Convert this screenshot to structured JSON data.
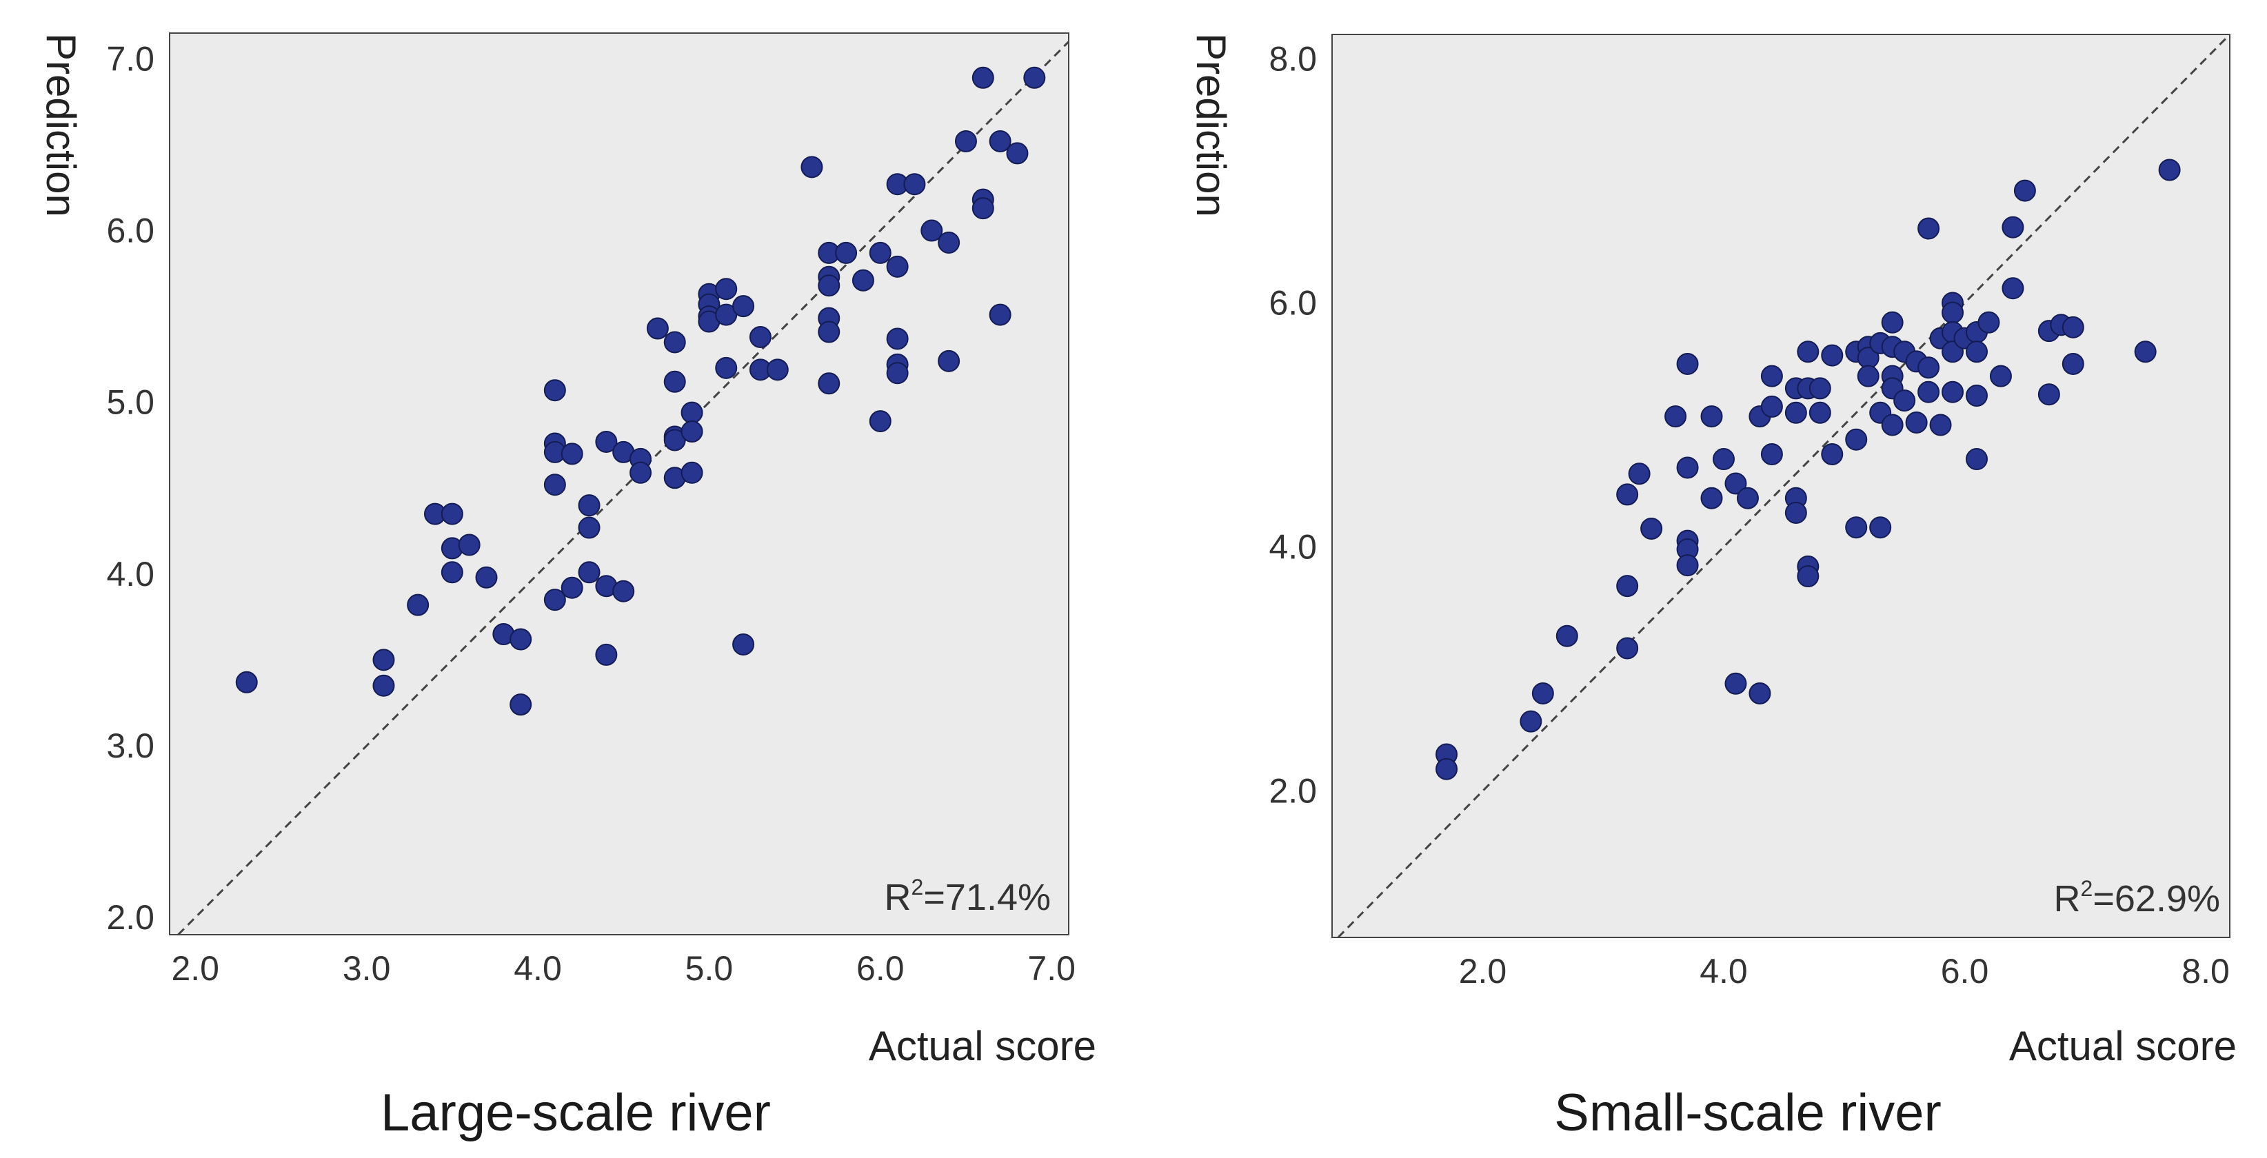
{
  "chart_data": [
    {
      "type": "scatter",
      "title": "Large-scale river",
      "xlabel": "Actual score",
      "ylabel": "Prediction",
      "xlim": [
        1.85,
        7.1
      ],
      "ylim": [
        1.9,
        7.15
      ],
      "xticks": [
        "2.0",
        "3.0",
        "4.0",
        "5.0",
        "6.0",
        "7.0"
      ],
      "yticks": [
        "2.0",
        "3.0",
        "4.0",
        "5.0",
        "6.0",
        "7.0"
      ],
      "annotation": {
        "prefix": "R",
        "sup": "2",
        "suffix": "=71.4%"
      },
      "reference_line": "y = x",
      "point_color": "#27358f",
      "background": "#ebebeb",
      "points": [
        [
          2.3,
          3.37
        ],
        [
          3.1,
          3.5
        ],
        [
          3.1,
          3.35
        ],
        [
          3.3,
          3.82
        ],
        [
          3.4,
          4.35
        ],
        [
          3.5,
          4.35
        ],
        [
          3.5,
          4.15
        ],
        [
          3.5,
          4.01
        ],
        [
          3.6,
          4.17
        ],
        [
          3.7,
          3.98
        ],
        [
          3.8,
          3.65
        ],
        [
          3.9,
          3.62
        ],
        [
          3.9,
          3.24
        ],
        [
          4.1,
          5.07
        ],
        [
          4.1,
          4.76
        ],
        [
          4.1,
          4.71
        ],
        [
          4.1,
          4.52
        ],
        [
          4.1,
          3.85
        ],
        [
          4.2,
          4.7
        ],
        [
          4.2,
          3.92
        ],
        [
          4.3,
          4.4
        ],
        [
          4.3,
          4.27
        ],
        [
          4.3,
          4.01
        ],
        [
          4.4,
          4.77
        ],
        [
          4.4,
          3.93
        ],
        [
          4.4,
          3.53
        ],
        [
          4.5,
          4.71
        ],
        [
          4.5,
          3.9
        ],
        [
          4.6,
          4.67
        ],
        [
          4.6,
          4.59
        ],
        [
          4.7,
          5.43
        ],
        [
          4.8,
          5.35
        ],
        [
          4.8,
          5.12
        ],
        [
          4.8,
          4.8
        ],
        [
          4.8,
          4.78
        ],
        [
          4.8,
          4.56
        ],
        [
          4.9,
          4.94
        ],
        [
          4.9,
          4.83
        ],
        [
          4.9,
          4.59
        ],
        [
          5.0,
          5.63
        ],
        [
          5.0,
          5.57
        ],
        [
          5.0,
          5.5
        ],
        [
          5.0,
          5.47
        ],
        [
          5.1,
          5.66
        ],
        [
          5.1,
          5.51
        ],
        [
          5.1,
          5.2
        ],
        [
          5.2,
          5.56
        ],
        [
          5.2,
          3.59
        ],
        [
          5.3,
          5.38
        ],
        [
          5.3,
          5.19
        ],
        [
          5.4,
          5.19
        ],
        [
          5.6,
          6.37
        ],
        [
          5.7,
          5.87
        ],
        [
          5.7,
          5.73
        ],
        [
          5.7,
          5.68
        ],
        [
          5.7,
          5.49
        ],
        [
          5.7,
          5.41
        ],
        [
          5.7,
          5.11
        ],
        [
          5.8,
          5.87
        ],
        [
          5.9,
          5.71
        ],
        [
          6.0,
          5.87
        ],
        [
          6.0,
          4.89
        ],
        [
          6.1,
          6.27
        ],
        [
          6.1,
          5.79
        ],
        [
          6.1,
          5.37
        ],
        [
          6.1,
          5.22
        ],
        [
          6.1,
          5.17
        ],
        [
          6.2,
          6.27
        ],
        [
          6.3,
          6.0
        ],
        [
          6.4,
          5.93
        ],
        [
          6.4,
          5.24
        ],
        [
          6.5,
          6.52
        ],
        [
          6.6,
          6.89
        ],
        [
          6.6,
          6.18
        ],
        [
          6.6,
          6.13
        ],
        [
          6.7,
          6.52
        ],
        [
          6.7,
          5.51
        ],
        [
          6.8,
          6.45
        ],
        [
          6.9,
          6.89
        ]
      ]
    },
    {
      "type": "scatter",
      "title": "Small-scale river",
      "xlabel": "Actual score",
      "ylabel": "Prediction",
      "xlim": [
        0.75,
        8.2
      ],
      "ylim": [
        0.8,
        8.2
      ],
      "xticks": [
        "2.0",
        "4.0",
        "6.0",
        "8.0"
      ],
      "yticks": [
        "2.0",
        "4.0",
        "6.0",
        "8.0"
      ],
      "annotation": {
        "prefix": "R",
        "sup": "2",
        "suffix": "=62.9%"
      },
      "reference_line": "y = x",
      "point_color": "#27358f",
      "background": "#ebebeb",
      "points": [
        [
          1.7,
          2.3
        ],
        [
          1.7,
          2.18
        ],
        [
          2.4,
          2.57
        ],
        [
          2.5,
          2.8
        ],
        [
          2.7,
          3.27
        ],
        [
          3.2,
          4.43
        ],
        [
          3.2,
          3.68
        ],
        [
          3.2,
          3.17
        ],
        [
          3.3,
          4.6
        ],
        [
          3.4,
          4.15
        ],
        [
          3.6,
          5.07
        ],
        [
          3.7,
          5.5
        ],
        [
          3.7,
          4.65
        ],
        [
          3.7,
          4.05
        ],
        [
          3.7,
          3.98
        ],
        [
          3.7,
          3.85
        ],
        [
          3.9,
          5.07
        ],
        [
          3.9,
          4.4
        ],
        [
          4.0,
          4.72
        ],
        [
          4.1,
          4.52
        ],
        [
          4.1,
          2.88
        ],
        [
          4.2,
          4.4
        ],
        [
          4.3,
          5.07
        ],
        [
          4.3,
          2.8
        ],
        [
          4.4,
          5.4
        ],
        [
          4.4,
          5.15
        ],
        [
          4.4,
          4.76
        ],
        [
          4.6,
          5.3
        ],
        [
          4.6,
          5.1
        ],
        [
          4.6,
          4.4
        ],
        [
          4.6,
          4.28
        ],
        [
          4.7,
          5.6
        ],
        [
          4.7,
          5.3
        ],
        [
          4.7,
          3.84
        ],
        [
          4.7,
          3.76
        ],
        [
          4.8,
          5.3
        ],
        [
          4.8,
          5.1
        ],
        [
          4.9,
          5.57
        ],
        [
          4.9,
          4.76
        ],
        [
          5.1,
          5.6
        ],
        [
          5.1,
          4.88
        ],
        [
          5.1,
          4.16
        ],
        [
          5.2,
          5.64
        ],
        [
          5.2,
          5.55
        ],
        [
          5.2,
          5.4
        ],
        [
          5.3,
          5.67
        ],
        [
          5.3,
          5.1
        ],
        [
          5.3,
          4.16
        ],
        [
          5.4,
          5.84
        ],
        [
          5.4,
          5.64
        ],
        [
          5.4,
          5.4
        ],
        [
          5.4,
          5.3
        ],
        [
          5.4,
          5.0
        ],
        [
          5.5,
          5.6
        ],
        [
          5.5,
          5.2
        ],
        [
          5.6,
          5.52
        ],
        [
          5.6,
          5.02
        ],
        [
          5.7,
          6.61
        ],
        [
          5.7,
          5.47
        ],
        [
          5.7,
          5.27
        ],
        [
          5.8,
          5.71
        ],
        [
          5.8,
          5.0
        ],
        [
          5.9,
          6.0
        ],
        [
          5.9,
          5.92
        ],
        [
          5.9,
          5.76
        ],
        [
          5.9,
          5.6
        ],
        [
          5.9,
          5.27
        ],
        [
          6.0,
          5.71
        ],
        [
          6.1,
          5.76
        ],
        [
          6.1,
          5.6
        ],
        [
          6.1,
          5.24
        ],
        [
          6.1,
          4.72
        ],
        [
          6.2,
          5.84
        ],
        [
          6.3,
          5.4
        ],
        [
          6.4,
          6.62
        ],
        [
          6.4,
          6.12
        ],
        [
          6.5,
          6.92
        ],
        [
          6.7,
          5.77
        ],
        [
          6.7,
          5.25
        ],
        [
          6.8,
          5.82
        ],
        [
          6.9,
          5.8
        ],
        [
          6.9,
          5.5
        ],
        [
          7.5,
          5.6
        ],
        [
          7.7,
          7.09
        ]
      ]
    }
  ]
}
